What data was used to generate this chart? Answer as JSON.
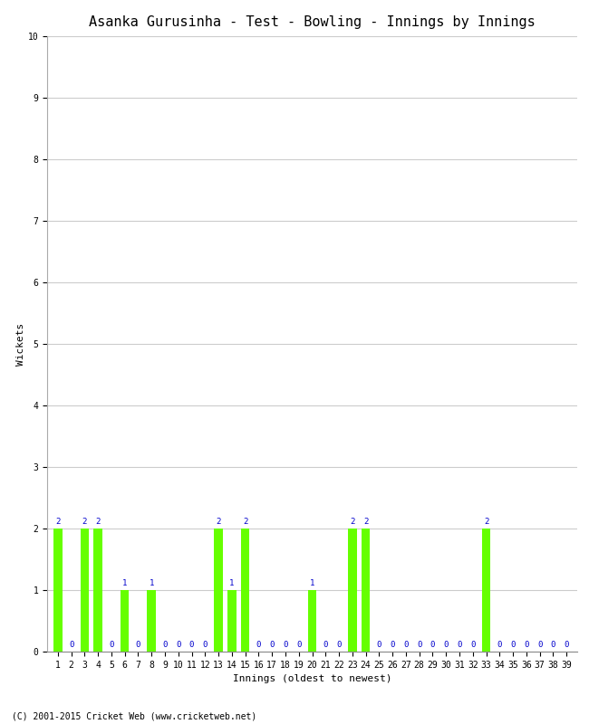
{
  "title": "Asanka Gurusinha - Test - Bowling - Innings by Innings",
  "xlabel": "Innings (oldest to newest)",
  "ylabel": "Wickets",
  "innings": [
    1,
    2,
    3,
    4,
    5,
    6,
    7,
    8,
    9,
    10,
    11,
    12,
    13,
    14,
    15,
    16,
    17,
    18,
    19,
    20,
    21,
    22,
    23,
    24,
    25,
    26,
    27,
    28,
    29,
    30,
    31,
    32,
    33,
    34,
    35,
    36,
    37,
    38,
    39
  ],
  "wickets": [
    2,
    0,
    2,
    2,
    0,
    1,
    0,
    1,
    0,
    0,
    0,
    0,
    2,
    1,
    2,
    0,
    0,
    0,
    0,
    1,
    0,
    0,
    2,
    2,
    0,
    0,
    0,
    0,
    0,
    0,
    0,
    0,
    2,
    0,
    0,
    0,
    0,
    0,
    0
  ],
  "bar_color": "#66ff00",
  "label_color": "#0000cc",
  "background_color": "#ffffff",
  "ylim": [
    0,
    10
  ],
  "yticks": [
    0,
    1,
    2,
    3,
    4,
    5,
    6,
    7,
    8,
    9,
    10
  ],
  "grid_color": "#cccccc",
  "title_fontsize": 11,
  "axis_label_fontsize": 8,
  "tick_fontsize": 7,
  "bar_label_fontsize": 6.5,
  "copyright": "(C) 2001-2015 Cricket Web (www.cricketweb.net)"
}
